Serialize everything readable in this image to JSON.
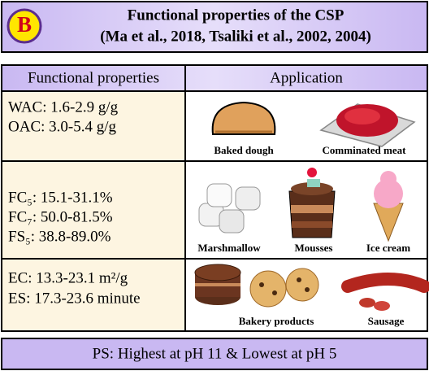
{
  "header": {
    "badge": "B",
    "title": "Functional properties of the CSP",
    "subtitle": "(Ma et al., 2018, Tsaliki et al., 2002, 2004)"
  },
  "table": {
    "columns": [
      "Functional properties",
      "Application"
    ],
    "rows": [
      {
        "properties": [
          "WAC: 1.6-2.9 g/g",
          "OAC: 3.0-5.4 g/g"
        ],
        "applications": [
          "Baked dough",
          "Comminated meat"
        ]
      },
      {
        "properties": [
          "FC₅: 15.1-31.1%",
          "FC₇: 50.0-81.5%",
          "FS₅: 38.8-89.0%"
        ],
        "applications": [
          "Marshmallow",
          "Mousses",
          "Ice cream"
        ]
      },
      {
        "properties": [
          "EC: 13.3-23.1 m²/g",
          "ES: 17.3-23.6 minute"
        ],
        "applications": [
          "Bakery products",
          "Sausage"
        ]
      }
    ]
  },
  "footer": "PS: Highest at pH 11 & Lowest at pH 5"
}
